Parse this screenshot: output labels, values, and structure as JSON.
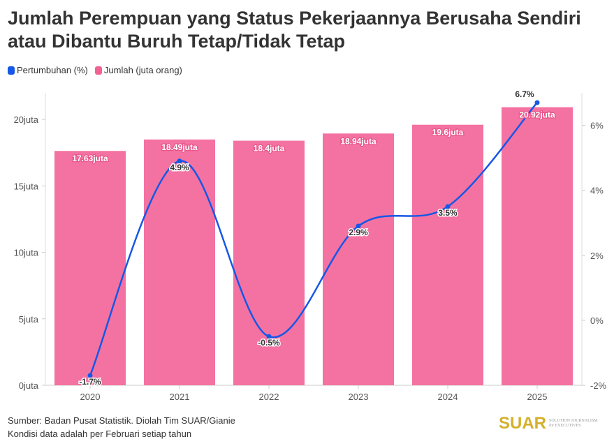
{
  "title": "Jumlah Perempuan yang Status Pekerjaannya Berusaha Sendiri atau Dibantu Buruh Tetap/Tidak Tetap",
  "legend": [
    {
      "label": "Pertumbuhan (%)",
      "color": "#1657e6"
    },
    {
      "label": "Jumlah (juta orang)",
      "color": "#f06292"
    }
  ],
  "footer": {
    "source": "Sumber: Badan Pusat Statistik. Diolah Tim SUAR/Gianie",
    "note": "Kondisi data adalah per Februari setiap tahun"
  },
  "logo": {
    "name": "SUAR",
    "tagline": "SOLUTION JOURNALISM for EXECUTIVES"
  },
  "chart_data": {
    "type": "bar+line",
    "categories": [
      "2020",
      "2021",
      "2022",
      "2023",
      "2024",
      "2025"
    ],
    "series": [
      {
        "name": "Jumlah (juta orang)",
        "type": "bar",
        "axis": "left",
        "values": [
          17.63,
          18.49,
          18.4,
          18.94,
          19.6,
          20.92
        ],
        "labels": [
          "17.63juta",
          "18.49juta",
          "18.4juta",
          "18.94juta",
          "19.6juta",
          "20.92juta"
        ],
        "color": "#f472a2"
      },
      {
        "name": "Pertumbuhan (%)",
        "type": "line",
        "axis": "right",
        "values": [
          -1.7,
          4.9,
          -0.5,
          2.9,
          3.5,
          6.7
        ],
        "labels": [
          "-1.7%",
          "4.9%",
          "-0.5%",
          "2.9%",
          "3.5%",
          "6.7%"
        ],
        "color": "#1657e6"
      }
    ],
    "left_axis": {
      "ticks": [
        0,
        5,
        10,
        15,
        20
      ],
      "tick_labels": [
        "0juta",
        "5juta",
        "10juta",
        "15juta",
        "20juta"
      ],
      "range": [
        0,
        22
      ]
    },
    "right_axis": {
      "ticks": [
        -2,
        0,
        2,
        4,
        6
      ],
      "tick_labels": [
        "-2%",
        "0%",
        "2%",
        "4%",
        "6%"
      ],
      "range": [
        -2,
        7
      ]
    },
    "grid": false
  }
}
